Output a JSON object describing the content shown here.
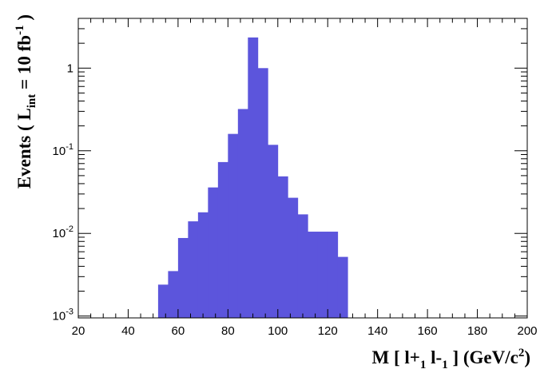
{
  "chart_data": {
    "type": "bar",
    "title": "",
    "xlabel": "M [ l+1 l-1 ] (GeV/c2)",
    "ylabel": "Events ( Lint = 10 fb-1 )",
    "xlim": [
      20,
      200
    ],
    "ylim": [
      0.00095,
      4.0
    ],
    "y_scale": "log",
    "x_ticks": [
      "20",
      "40",
      "60",
      "80",
      "100",
      "120",
      "140",
      "160",
      "180",
      "200"
    ],
    "y_ticks": [
      "10-3",
      "10-2",
      "10-1",
      "1"
    ],
    "bin_width": 4,
    "bin_low_edges": [
      52,
      56,
      60,
      64,
      68,
      72,
      76,
      80,
      84,
      88,
      92,
      96,
      100,
      104,
      108,
      112,
      116,
      120,
      124
    ],
    "values": [
      0.0024,
      0.0035,
      0.0088,
      0.014,
      0.018,
      0.036,
      0.073,
      0.16,
      0.32,
      2.35,
      1.0,
      0.118,
      0.049,
      0.027,
      0.017,
      0.0105,
      0.0105,
      0.0105,
      0.0052
    ],
    "fill_color": "#5c55dc",
    "grid": false
  }
}
